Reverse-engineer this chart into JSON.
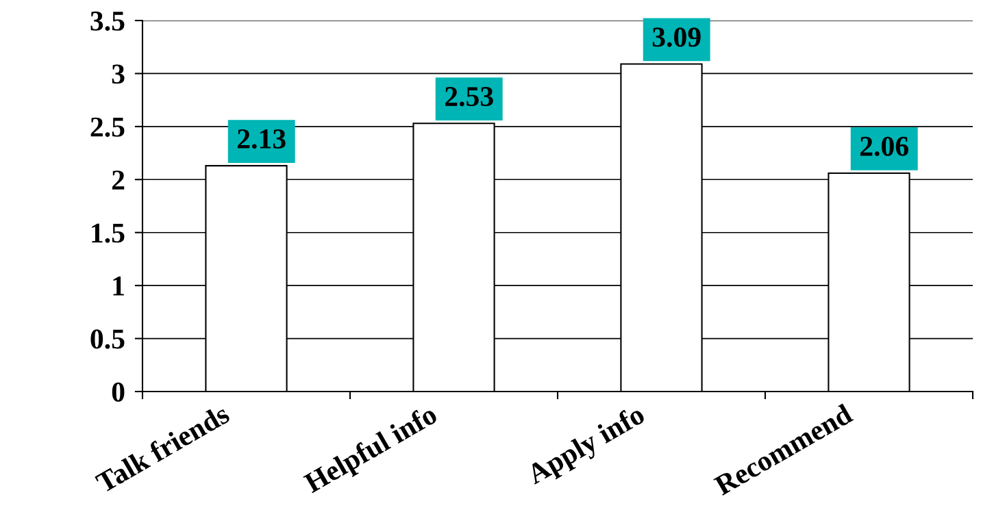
{
  "chart_data": {
    "type": "bar",
    "categories": [
      "Talk friends",
      "Helpful info",
      "Apply info",
      "Recommend"
    ],
    "values": [
      2.13,
      2.53,
      3.09,
      2.06
    ],
    "color": "#ffffff",
    "ylim": [
      0,
      3.5
    ],
    "yticks": [
      0,
      0.5,
      1,
      1.5,
      2,
      2.5,
      3,
      3.5
    ],
    "grid": "y",
    "data_labels": true
  }
}
